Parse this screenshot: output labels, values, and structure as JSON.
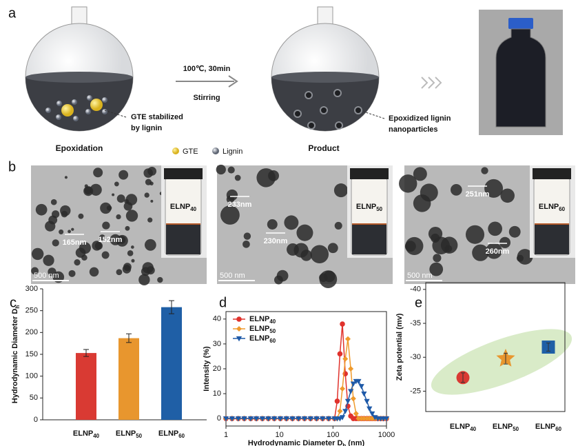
{
  "panel_labels": [
    "a",
    "b",
    "c",
    "d",
    "e"
  ],
  "scheme": {
    "condition": "100℃, 30min",
    "process": "Stirring",
    "left_note": [
      "GTE stabilized",
      "by lignin"
    ],
    "left_caption": "Epoxidation",
    "right_note": [
      "Epoxidized lignin",
      "nanoparticles"
    ],
    "right_caption": "Product",
    "legend": [
      "GTE",
      "Lignin"
    ]
  },
  "tem": [
    {
      "label": {
        "text": "ELNP",
        "sub": "40"
      },
      "sizes": [
        "165nm",
        "152nm"
      ],
      "scale": "500 nm"
    },
    {
      "label": {
        "text": "ELNP",
        "sub": "50"
      },
      "sizes": [
        "233nm",
        "230nm"
      ],
      "scale": "500 nm"
    },
    {
      "label": {
        "text": "ELNP",
        "sub": "60"
      },
      "sizes": [
        "251nm",
        "260nm"
      ],
      "scale": "500 nm"
    }
  ],
  "chart_data": [
    {
      "type": "bar",
      "ylabel": {
        "text": "Hydrodynamic Diameter D",
        "sub": "h"
      },
      "categories": [
        {
          "text": "ELNP",
          "sub": "40"
        },
        {
          "text": "ELNP",
          "sub": "50"
        },
        {
          "text": "ELNP",
          "sub": "60"
        }
      ],
      "values": [
        153,
        187,
        258
      ],
      "errors": [
        8,
        10,
        15
      ],
      "colors": [
        "#d93a33",
        "#e8962e",
        "#1f5fa6"
      ],
      "ylim": [
        0,
        300
      ],
      "yticks": [
        0,
        50,
        100,
        150,
        200,
        250,
        300
      ]
    },
    {
      "type": "line",
      "ylabel": "Intensity (%)",
      "xlabel": {
        "text": "Hydrodynamic Diameter D",
        "sub": "h",
        "unit": " (nm)"
      },
      "x": [
        1,
        1.3,
        1.7,
        2.2,
        2.9,
        3.7,
        4.8,
        6.2,
        8,
        10.4,
        13.5,
        17.5,
        22.7,
        29.4,
        38.1,
        49.4,
        64,
        83,
        107,
        120,
        135,
        150,
        170,
        190,
        215,
        240,
        270,
        300,
        340,
        380,
        430,
        480,
        540,
        610,
        690,
        780,
        880,
        1000
      ],
      "xscale": "log",
      "xlim": [
        1,
        1000
      ],
      "xticks": [
        1,
        10,
        100,
        1000
      ],
      "ylim": [
        -3,
        43
      ],
      "yticks": [
        0,
        10,
        20,
        30,
        40
      ],
      "legend": "upper left",
      "series": [
        {
          "name": {
            "text": "ELNP",
            "sub": "40"
          },
          "color": "#e0322c",
          "marker": "circle",
          "values": [
            0,
            0,
            0,
            0,
            0,
            0,
            0,
            0,
            0,
            0,
            0,
            0,
            0,
            0,
            0,
            0,
            0,
            0,
            0,
            7,
            26,
            38,
            18,
            5,
            1,
            0,
            0,
            0,
            0,
            0,
            0,
            0,
            0,
            0,
            0,
            0,
            0,
            0
          ]
        },
        {
          "name": {
            "text": "ELNP",
            "sub": "50"
          },
          "color": "#ef9a2c",
          "marker": "diamond",
          "values": [
            0,
            0,
            0,
            0,
            0,
            0,
            0,
            0,
            0,
            0,
            0,
            0,
            0,
            0,
            0,
            0,
            0,
            0,
            0,
            0,
            3,
            12,
            24,
            32,
            20,
            8,
            2,
            0,
            0,
            0,
            0,
            0,
            0,
            0,
            0,
            0,
            0,
            0
          ]
        },
        {
          "name": {
            "text": "ELNP",
            "sub": "60"
          },
          "color": "#1f5aa8",
          "marker": "triangle-down",
          "values": [
            0,
            0,
            0,
            0,
            0,
            0,
            0,
            0,
            0,
            0,
            0,
            0,
            0,
            0,
            0,
            0,
            0,
            0,
            0,
            0,
            0,
            0.5,
            3,
            7,
            11,
            14,
            15,
            15,
            13,
            10,
            7,
            4,
            2,
            0.5,
            0,
            0,
            0,
            0
          ]
        }
      ]
    },
    {
      "type": "scatter",
      "ylabel": "Zeta potential (mv)",
      "categories": [
        {
          "text": "ELNP",
          "sub": "40"
        },
        {
          "text": "ELNP",
          "sub": "50"
        },
        {
          "text": "ELNP",
          "sub": "60"
        }
      ],
      "values": [
        -27.0,
        -29.8,
        -31.5
      ],
      "errors": [
        0.7,
        0.8,
        0.6
      ],
      "colors": [
        "#d93a33",
        "#e8962e",
        "#1f5fa6"
      ],
      "markers": [
        "circle",
        "star",
        "square"
      ],
      "ylim": [
        -22,
        -41
      ],
      "yticks": [
        -40,
        -35,
        -30,
        -25
      ]
    }
  ]
}
